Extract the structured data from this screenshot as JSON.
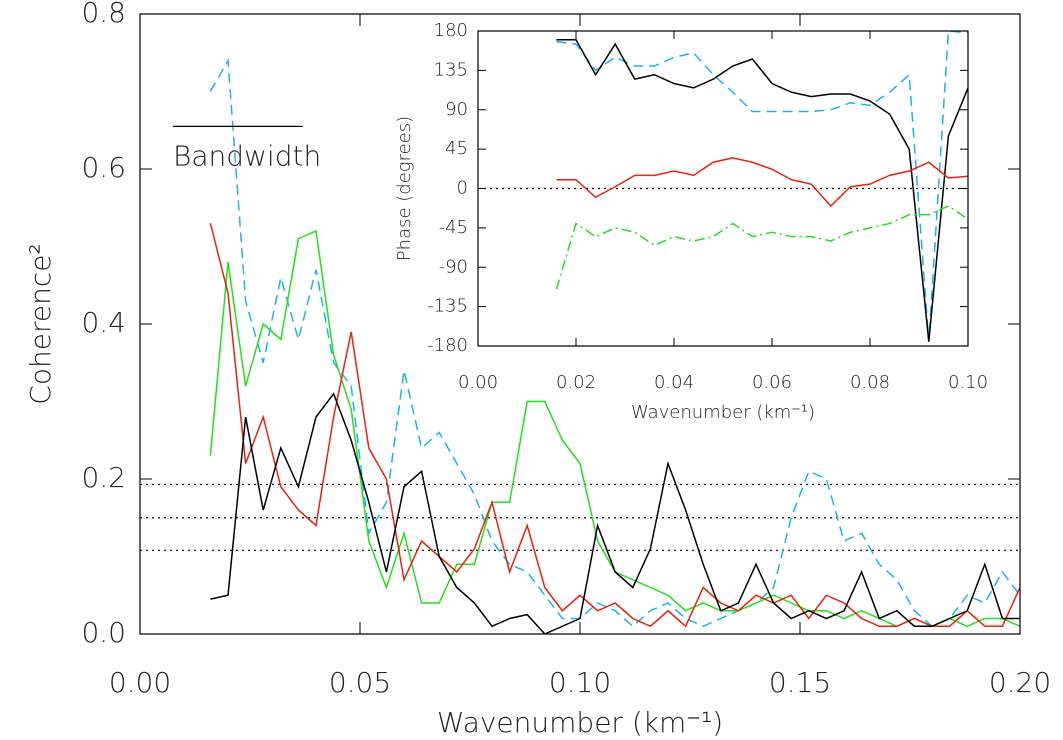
{
  "chart_data": [
    {
      "type": "line",
      "xlabel": "Wavenumber (km⁻¹)",
      "ylabel": "Coherence²",
      "xlim": [
        0,
        0.2
      ],
      "ylim": [
        0,
        0.8
      ],
      "xticks": [
        {
          "value": 0,
          "label": "0.00"
        },
        {
          "value": 0.05,
          "label": "0.05"
        },
        {
          "value": 0.1,
          "label": "0.10"
        },
        {
          "value": 0.15,
          "label": "0.15"
        },
        {
          "value": 0.2,
          "label": "0.20"
        }
      ],
      "yticks": [
        {
          "value": 0,
          "label": "0.0"
        },
        {
          "value": 0.2,
          "label": "0.2"
        },
        {
          "value": 0.4,
          "label": "0.4"
        },
        {
          "value": 0.6,
          "label": "0.6"
        },
        {
          "value": 0.8,
          "label": "0.8"
        }
      ],
      "reference_lines": [
        0.193,
        0.15,
        0.108
      ],
      "annotation": {
        "text": "Bandwidth",
        "x": [
          0.0075,
          0.037
        ],
        "y": 0.655
      },
      "x": [
        0.016,
        0.02,
        0.024,
        0.028,
        0.032,
        0.036,
        0.04,
        0.044,
        0.048,
        0.052,
        0.056,
        0.06,
        0.064,
        0.068,
        0.072,
        0.076,
        0.08,
        0.084,
        0.088,
        0.092,
        0.096,
        0.1,
        0.104,
        0.108,
        0.112,
        0.116,
        0.12,
        0.124,
        0.128,
        0.132,
        0.136,
        0.14,
        0.144,
        0.148,
        0.152,
        0.156,
        0.16,
        0.164,
        0.168,
        0.172,
        0.176,
        0.18,
        0.184,
        0.188,
        0.192,
        0.196,
        0.2
      ],
      "series": [
        {
          "color": "#1ab4e8",
          "dash": "dashed",
          "values": [
            0.7,
            0.74,
            0.43,
            0.35,
            0.46,
            0.38,
            0.47,
            0.35,
            0.32,
            0.13,
            0.17,
            0.34,
            0.24,
            0.26,
            0.22,
            0.18,
            0.12,
            0.09,
            0.08,
            0.05,
            0.02,
            0.02,
            0.04,
            0.03,
            0.01,
            0.03,
            0.04,
            0.02,
            0.01,
            0.02,
            0.03,
            0.04,
            0.06,
            0.15,
            0.21,
            0.2,
            0.12,
            0.13,
            0.09,
            0.07,
            0.03,
            0.01,
            0.02,
            0.05,
            0.04,
            0.08,
            0.05
          ]
        },
        {
          "color": "#22e01a",
          "dash": "solid",
          "values": [
            0.23,
            0.48,
            0.32,
            0.4,
            0.38,
            0.51,
            0.52,
            0.36,
            0.29,
            0.12,
            0.06,
            0.13,
            0.04,
            0.04,
            0.09,
            0.09,
            0.17,
            0.17,
            0.3,
            0.3,
            0.25,
            0.22,
            0.12,
            0.08,
            0.07,
            0.06,
            0.05,
            0.03,
            0.04,
            0.03,
            0.03,
            0.04,
            0.05,
            0.04,
            0.03,
            0.03,
            0.02,
            0.03,
            0.02,
            0.01,
            0.02,
            0.01,
            0.02,
            0.01,
            0.02,
            0.02,
            0.01
          ]
        },
        {
          "color": "#e8220c",
          "dash": "solid",
          "values": [
            0.53,
            0.44,
            0.22,
            0.28,
            0.19,
            0.16,
            0.14,
            0.28,
            0.39,
            0.24,
            0.2,
            0.07,
            0.12,
            0.1,
            0.08,
            0.11,
            0.17,
            0.08,
            0.14,
            0.06,
            0.03,
            0.05,
            0.03,
            0.04,
            0.02,
            0.01,
            0.03,
            0.01,
            0.06,
            0.04,
            0.03,
            0.05,
            0.04,
            0.05,
            0.02,
            0.05,
            0.04,
            0.02,
            0.01,
            0.01,
            0.02,
            0.01,
            0.01,
            0.03,
            0.01,
            0.01,
            0.06
          ]
        },
        {
          "color": "#000000",
          "dash": "solid",
          "values": [
            0.045,
            0.05,
            0.28,
            0.16,
            0.24,
            0.19,
            0.28,
            0.31,
            0.25,
            0.17,
            0.08,
            0.19,
            0.21,
            0.1,
            0.06,
            0.04,
            0.01,
            0.02,
            0.025,
            0.0,
            0.01,
            0.02,
            0.14,
            0.08,
            0.06,
            0.11,
            0.22,
            0.16,
            0.09,
            0.03,
            0.04,
            0.09,
            0.04,
            0.02,
            0.03,
            0.02,
            0.03,
            0.08,
            0.02,
            0.03,
            0.01,
            0.01,
            0.02,
            0.03,
            0.09,
            0.02,
            0.02
          ]
        }
      ]
    },
    {
      "type": "line",
      "xlabel": "Wavenumber (km⁻¹)",
      "ylabel": "Phase (degrees)",
      "xlim": [
        0,
        0.1
      ],
      "ylim": [
        -180,
        180
      ],
      "xticks": [
        {
          "value": 0,
          "label": "0.00"
        },
        {
          "value": 0.02,
          "label": "0.02"
        },
        {
          "value": 0.04,
          "label": "0.04"
        },
        {
          "value": 0.06,
          "label": "0.06"
        },
        {
          "value": 0.08,
          "label": "0.08"
        },
        {
          "value": 0.1,
          "label": "0.10"
        }
      ],
      "yticks": [
        180,
        135,
        90,
        45,
        0,
        -45,
        -90,
        -135,
        -180
      ],
      "reference_lines": [
        0
      ],
      "x": [
        0.016,
        0.02,
        0.024,
        0.028,
        0.032,
        0.036,
        0.04,
        0.044,
        0.048,
        0.052,
        0.056,
        0.06,
        0.064,
        0.068,
        0.072,
        0.076,
        0.08,
        0.084,
        0.088,
        0.092,
        0.096,
        0.1
      ],
      "series": [
        {
          "color": "#1ab4e8",
          "dash": "dashed",
          "values": [
            168,
            165,
            135,
            150,
            140,
            140,
            150,
            155,
            130,
            110,
            88,
            88,
            88,
            88,
            90,
            98,
            95,
            110,
            130,
            -175,
            180,
            178
          ]
        },
        {
          "color": "#000000",
          "dash": "solid",
          "values": [
            170,
            170,
            130,
            165,
            125,
            130,
            120,
            115,
            125,
            140,
            148,
            120,
            110,
            105,
            108,
            108,
            100,
            85,
            45,
            -175,
            60,
            115
          ]
        },
        {
          "color": "#e8220c",
          "dash": "solid",
          "values": [
            10,
            10,
            -10,
            2,
            15,
            15,
            20,
            15,
            30,
            35,
            30,
            22,
            10,
            5,
            -20,
            2,
            5,
            15,
            20,
            30,
            12,
            14
          ]
        },
        {
          "color": "#22e01a",
          "dash": "dashdot",
          "values": [
            -115,
            -40,
            -55,
            -45,
            -50,
            -65,
            -55,
            -60,
            -55,
            -40,
            -55,
            -50,
            -55,
            -55,
            -60,
            -50,
            -45,
            -40,
            -30,
            -30,
            -20,
            -35
          ]
        }
      ]
    }
  ]
}
